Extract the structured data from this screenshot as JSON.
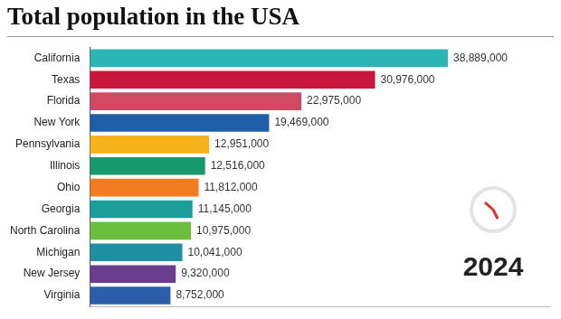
{
  "chart_data": {
    "type": "bar",
    "title": "Total population in the USA",
    "annotation": "2024",
    "orientation": "horizontal",
    "categories": [
      "California",
      "Texas",
      "Florida",
      "New York",
      "Pennsylvania",
      "Illinois",
      "Ohio",
      "Georgia",
      "North Carolina",
      "Michigan",
      "New Jersey",
      "Virginia"
    ],
    "values": [
      38889000,
      30976000,
      22975000,
      19469000,
      12951000,
      12516000,
      11812000,
      11145000,
      10975000,
      10041000,
      9320000,
      8752000
    ],
    "value_labels": [
      "38,889,000",
      "30,976,000",
      "22,975,000",
      "19,469,000",
      "12,951,000",
      "12,516,000",
      "11,812,000",
      "11,145,000",
      "10,975,000",
      "10,041,000",
      "9,320,000",
      "8,752,000"
    ],
    "colors": [
      "#2cb5b5",
      "#c8173a",
      "#d04a63",
      "#1f5fa8",
      "#f5b21b",
      "#17996d",
      "#f47c20",
      "#1c9e9a",
      "#6cbf3c",
      "#1f8fa3",
      "#6a3d8f",
      "#2a5ea8"
    ],
    "xlim": [
      0,
      50000000
    ],
    "grid": false,
    "data_labels": true,
    "tick_labels": "y"
  }
}
